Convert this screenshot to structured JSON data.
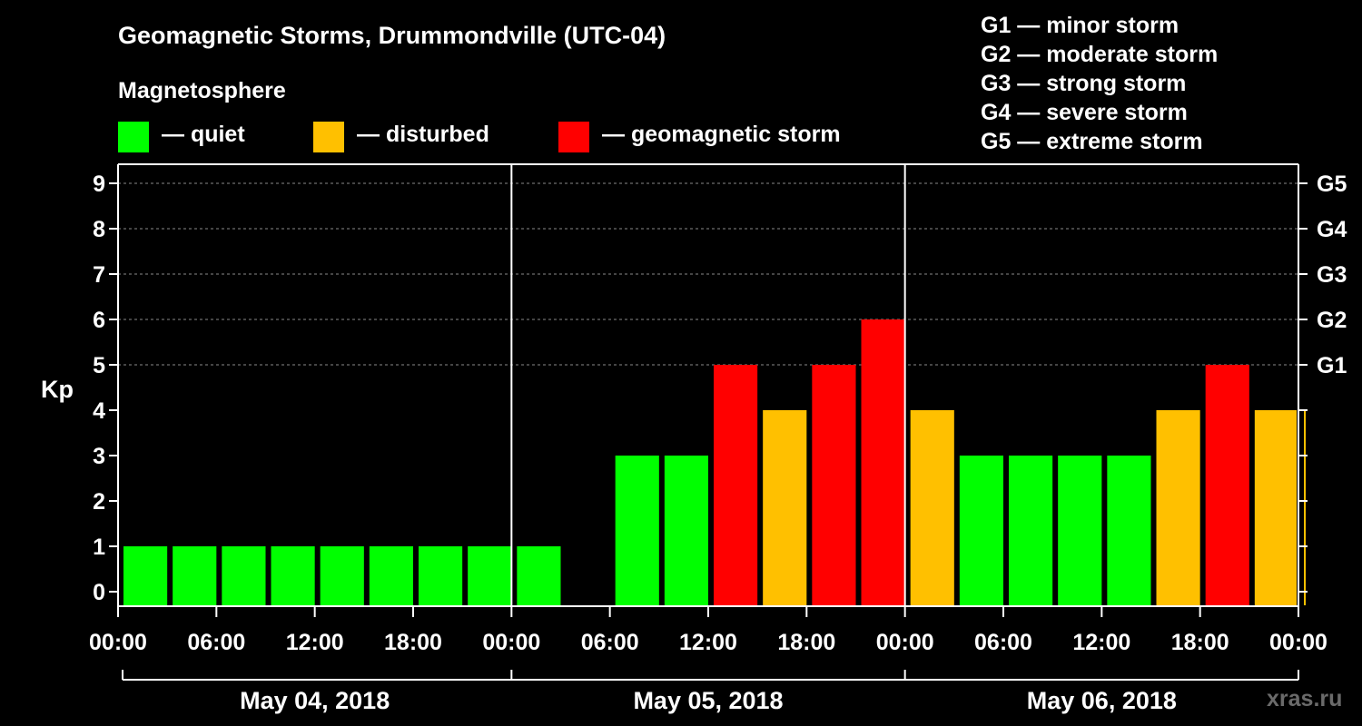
{
  "title": "Geomagnetic Storms, Drummondville (UTC-04)",
  "magnetosphere": {
    "heading": "Magnetosphere",
    "items": [
      {
        "label": "— quiet",
        "color": "#00ff00"
      },
      {
        "label": "— disturbed",
        "color": "#ffc000"
      },
      {
        "label": "— geomagnetic storm",
        "color": "#ff0000"
      }
    ]
  },
  "storm_scale": [
    "G1 — minor storm",
    "G2 — moderate storm",
    "G3 — strong storm",
    "G4 — severe storm",
    "G5 — extreme storm"
  ],
  "watermark": "xras.ru",
  "chart_data": {
    "type": "bar",
    "ylabel": "Kp",
    "ylim": [
      0,
      9
    ],
    "yticks": [
      "0",
      "1",
      "2",
      "3",
      "4",
      "5",
      "6",
      "7",
      "8",
      "9"
    ],
    "right_ticks": [
      {
        "value": 5,
        "label": "G1"
      },
      {
        "value": 6,
        "label": "G2"
      },
      {
        "value": 7,
        "label": "G3"
      },
      {
        "value": 8,
        "label": "G4"
      },
      {
        "value": 9,
        "label": "G5"
      }
    ],
    "xticks": [
      "00:00",
      "06:00",
      "12:00",
      "18:00",
      "00:00",
      "06:00",
      "12:00",
      "18:00",
      "00:00",
      "06:00",
      "12:00",
      "18:00",
      "00:00"
    ],
    "days": [
      "May 04, 2018",
      "May 05, 2018",
      "May 06, 2018"
    ],
    "grid": true,
    "bars": [
      {
        "start": "May 04 00:00",
        "end": "May 04 03:00",
        "kp": 1,
        "color": "#00ff00"
      },
      {
        "start": "May 04 03:00",
        "end": "May 04 06:00",
        "kp": 1,
        "color": "#00ff00"
      },
      {
        "start": "May 04 06:00",
        "end": "May 04 09:00",
        "kp": 1,
        "color": "#00ff00"
      },
      {
        "start": "May 04 09:00",
        "end": "May 04 12:00",
        "kp": 1,
        "color": "#00ff00"
      },
      {
        "start": "May 04 12:00",
        "end": "May 04 15:00",
        "kp": 1,
        "color": "#00ff00"
      },
      {
        "start": "May 04 15:00",
        "end": "May 04 18:00",
        "kp": 1,
        "color": "#00ff00"
      },
      {
        "start": "May 04 18:00",
        "end": "May 04 21:00",
        "kp": 1,
        "color": "#00ff00"
      },
      {
        "start": "May 04 21:00",
        "end": "May 05 00:00",
        "kp": 1,
        "color": "#00ff00"
      },
      {
        "start": "May 05 00:00",
        "end": "May 05 03:00",
        "kp": 1,
        "color": "#00ff00"
      },
      {
        "start": "May 05 06:00",
        "end": "May 05 09:00",
        "kp": 3,
        "color": "#00ff00"
      },
      {
        "start": "May 05 09:00",
        "end": "May 05 12:00",
        "kp": 3,
        "color": "#00ff00"
      },
      {
        "start": "May 05 12:00",
        "end": "May 05 15:00",
        "kp": 5,
        "color": "#ff0000"
      },
      {
        "start": "May 05 15:00",
        "end": "May 05 18:00",
        "kp": 4,
        "color": "#ffc000"
      },
      {
        "start": "May 05 18:00",
        "end": "May 05 21:00",
        "kp": 5,
        "color": "#ff0000"
      },
      {
        "start": "May 05 21:00",
        "end": "May 06 00:00",
        "kp": 6,
        "color": "#ff0000"
      },
      {
        "start": "May 06 00:00",
        "end": "May 06 03:00",
        "kp": 4,
        "color": "#ffc000"
      },
      {
        "start": "May 06 03:00",
        "end": "May 06 06:00",
        "kp": 3,
        "color": "#00ff00"
      },
      {
        "start": "May 06 06:00",
        "end": "May 06 09:00",
        "kp": 3,
        "color": "#00ff00"
      },
      {
        "start": "May 06 09:00",
        "end": "May 06 12:00",
        "kp": 3,
        "color": "#00ff00"
      },
      {
        "start": "May 06 12:00",
        "end": "May 06 15:00",
        "kp": 3,
        "color": "#00ff00"
      },
      {
        "start": "May 06 15:00",
        "end": "May 06 18:00",
        "kp": 4,
        "color": "#ffc000"
      },
      {
        "start": "May 06 18:00",
        "end": "May 06 21:00",
        "kp": 5,
        "color": "#ff0000"
      },
      {
        "start": "May 06 21:00",
        "end": "May 07 00:00",
        "kp": 4,
        "color": "#ffc000"
      },
      {
        "start": "May 07 00:00",
        "end": "May 07 00:00",
        "kp": 4,
        "color": "#ffc000"
      }
    ]
  }
}
